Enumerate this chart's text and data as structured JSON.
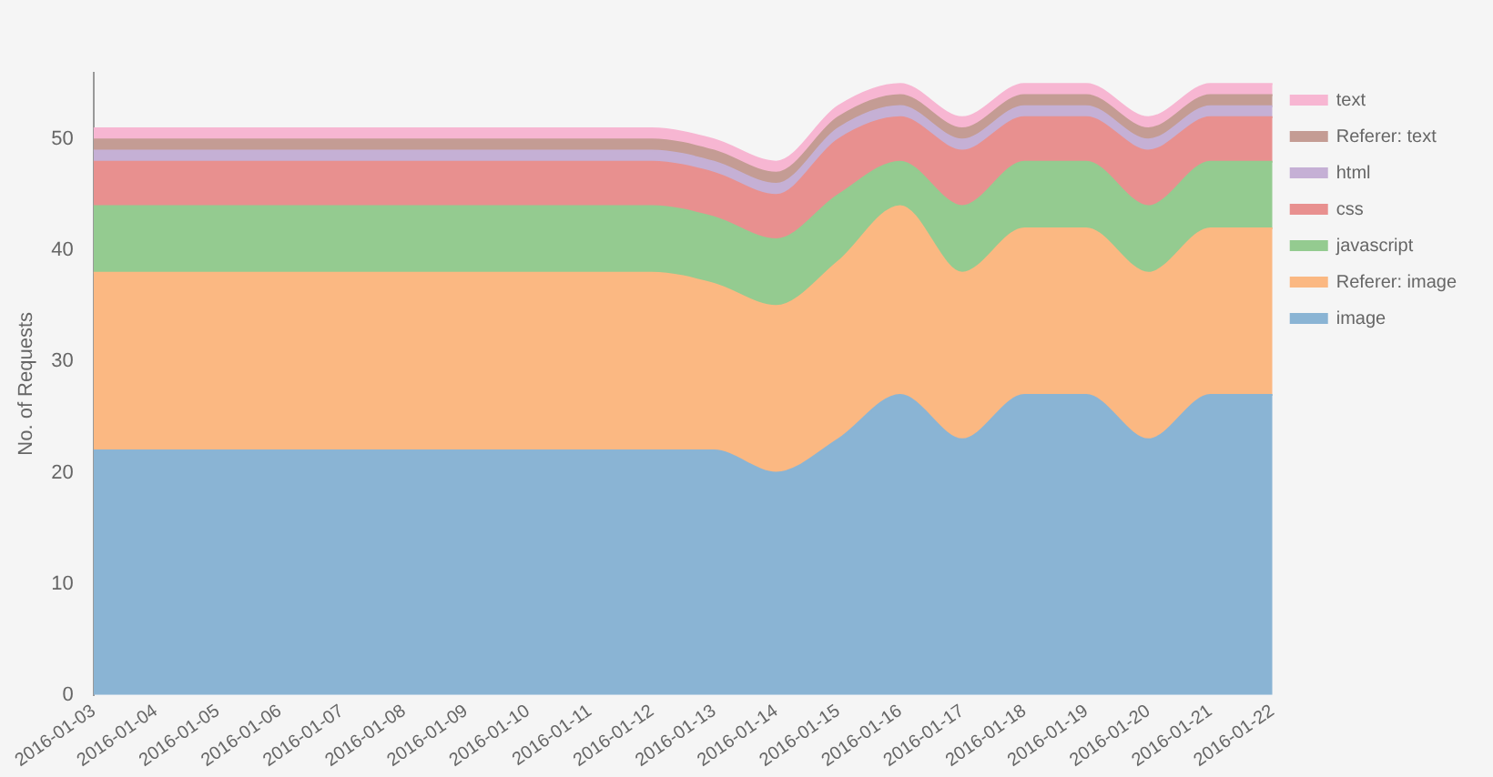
{
  "chart_data": {
    "type": "area",
    "stacked": true,
    "ylabel": "No. of Requests",
    "legend": "top right",
    "grid": false,
    "categories": [
      "2016-01-03",
      "2016-01-04",
      "2016-01-05",
      "2016-01-06",
      "2016-01-07",
      "2016-01-08",
      "2016-01-09",
      "2016-01-10",
      "2016-01-11",
      "2016-01-12",
      "2016-01-13",
      "2016-01-14",
      "2016-01-15",
      "2016-01-16",
      "2016-01-17",
      "2016-01-18",
      "2016-01-19",
      "2016-01-20",
      "2016-01-21",
      "2016-01-22"
    ],
    "ylim": [
      0,
      56
    ],
    "yticks": [
      0,
      10,
      20,
      30,
      40,
      50
    ],
    "series": [
      {
        "name": "image",
        "color": "#8ab4d4",
        "values": [
          22,
          22,
          22,
          22,
          22,
          22,
          22,
          22,
          22,
          22,
          22,
          20,
          23,
          27,
          23,
          27,
          27,
          23,
          27,
          27
        ]
      },
      {
        "name": "Referer: image",
        "color": "#fbb882",
        "values": [
          16,
          16,
          16,
          16,
          16,
          16,
          16,
          16,
          16,
          16,
          15,
          15,
          16,
          17,
          15,
          15,
          15,
          15,
          15,
          15
        ]
      },
      {
        "name": "javascript",
        "color": "#94cb90",
        "values": [
          6,
          6,
          6,
          6,
          6,
          6,
          6,
          6,
          6,
          6,
          6,
          6,
          6,
          4,
          6,
          6,
          6,
          6,
          6,
          6
        ]
      },
      {
        "name": "css",
        "color": "#e8908f",
        "values": [
          4,
          4,
          4,
          4,
          4,
          4,
          4,
          4,
          4,
          4,
          4,
          4,
          5,
          4,
          5,
          4,
          4,
          5,
          4,
          4
        ]
      },
      {
        "name": "html",
        "color": "#c5b0d5",
        "values": [
          1,
          1,
          1,
          1,
          1,
          1,
          1,
          1,
          1,
          1,
          1,
          1,
          1,
          1,
          1,
          1,
          1,
          1,
          1,
          1
        ]
      },
      {
        "name": "Referer: text",
        "color": "#c49c94",
        "values": [
          1,
          1,
          1,
          1,
          1,
          1,
          1,
          1,
          1,
          1,
          1,
          1,
          1,
          1,
          1,
          1,
          1,
          1,
          1,
          1
        ]
      },
      {
        "name": "text",
        "color": "#f7b6d2",
        "values": [
          1,
          1,
          1,
          1,
          1,
          1,
          1,
          1,
          1,
          1,
          1,
          1,
          1,
          1,
          1,
          1,
          1,
          1,
          1,
          1
        ]
      }
    ]
  }
}
